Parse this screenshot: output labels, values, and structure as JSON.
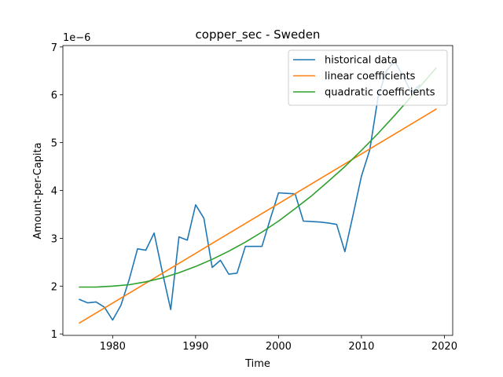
{
  "chart_data": {
    "type": "line",
    "title": "copper_sec - Sweden",
    "xlabel": "Time",
    "ylabel": "Amount-per-Capita",
    "y_offset_label": "1e−6",
    "xlim": [
      1974,
      2021
    ],
    "ylim": [
      0.97,
      7.03
    ],
    "x_ticks": [
      1980,
      1990,
      2000,
      2010,
      2020
    ],
    "x_tick_labels": [
      "1980",
      "1990",
      "2000",
      "2010",
      "2020"
    ],
    "y_ticks": [
      1,
      2,
      3,
      4,
      5,
      6,
      7
    ],
    "y_tick_labels": [
      "1",
      "2",
      "3",
      "4",
      "5",
      "6",
      "7"
    ],
    "grid": false,
    "legend_position": "top-right",
    "series": [
      {
        "name": "historical data",
        "color": "#1f77b4",
        "x": [
          1976,
          1977,
          1978,
          1979,
          1980,
          1981,
          1982,
          1983,
          1984,
          1985,
          1986,
          1987,
          1988,
          1989,
          1990,
          1991,
          1992,
          1993,
          1994,
          1995,
          1996,
          1997,
          1998,
          1999,
          2000,
          2001,
          2002,
          2003,
          2004,
          2005,
          2006,
          2007,
          2008,
          2009,
          2010,
          2011,
          2012,
          2013,
          2014,
          2015,
          2016,
          2017
        ],
        "y": [
          1.72,
          1.65,
          1.67,
          1.56,
          1.29,
          1.6,
          2.14,
          2.78,
          2.75,
          3.11,
          2.29,
          1.51,
          3.03,
          2.96,
          3.7,
          3.42,
          2.39,
          2.54,
          2.25,
          2.27,
          2.83,
          2.83,
          2.83,
          3.4,
          3.95,
          3.94,
          3.93,
          3.36,
          3.35,
          3.34,
          3.32,
          3.29,
          2.72,
          3.5,
          4.3,
          4.85,
          5.95,
          6.5,
          6.7,
          6.4,
          6.05,
          6.2
        ]
      },
      {
        "name": "linear coefficients",
        "color": "#ff7f0e",
        "x": [
          1976,
          2019
        ],
        "y": [
          1.23,
          5.7
        ]
      },
      {
        "name": "quadratic coefficients",
        "color": "#2ca02c",
        "x": [
          1976,
          1978,
          1980,
          1982,
          1984,
          1986,
          1988,
          1990,
          1992,
          1994,
          1996,
          1998,
          2000,
          2002,
          2004,
          2006,
          2008,
          2010,
          2012,
          2014,
          2016,
          2019
        ],
        "y": [
          1.98,
          1.98,
          2.0,
          2.03,
          2.09,
          2.17,
          2.28,
          2.41,
          2.56,
          2.73,
          2.92,
          3.13,
          3.36,
          3.62,
          3.89,
          4.19,
          4.5,
          4.84,
          5.19,
          5.57,
          5.96,
          6.56
        ]
      }
    ]
  }
}
